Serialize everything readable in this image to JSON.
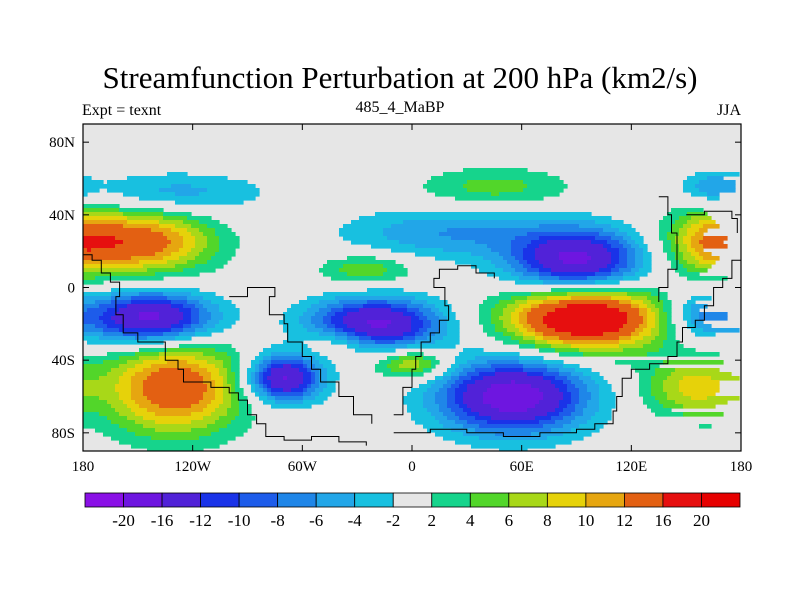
{
  "title": "Streamfunction Perturbation at 200 hPa (km2/s)",
  "subtitle_left": "Expt = texnt",
  "subtitle_center": "485_4_MaBP",
  "subtitle_right": "JJA",
  "chart_data": {
    "type": "heatmap",
    "title": "Streamfunction Perturbation at 200 hPa (km2/s)",
    "x_range": [
      -180,
      180
    ],
    "y_range": [
      -90,
      90
    ],
    "x_ticks": [
      {
        "value": -180,
        "label": "180"
      },
      {
        "value": -120,
        "label": "120W"
      },
      {
        "value": -60,
        "label": "60W"
      },
      {
        "value": 0,
        "label": "0"
      },
      {
        "value": 60,
        "label": "60E"
      },
      {
        "value": 120,
        "label": "120E"
      },
      {
        "value": 180,
        "label": "180"
      }
    ],
    "y_ticks": [
      {
        "value": 80,
        "label": "80N"
      },
      {
        "value": 40,
        "label": "40N"
      },
      {
        "value": 0,
        "label": "0"
      },
      {
        "value": -40,
        "label": "40S"
      },
      {
        "value": -80,
        "label": "80S"
      }
    ],
    "colorbar": {
      "levels": [
        "-20",
        "-16",
        "-12",
        "-10",
        "-8",
        "-6",
        "-4",
        "-2",
        "2",
        "4",
        "6",
        "8",
        "10",
        "12",
        "16",
        "20"
      ],
      "colors": [
        "#8a10e6",
        "#6e16e0",
        "#5122d8",
        "#1a33e8",
        "#1d5cea",
        "#1f86e8",
        "#22a6e8",
        "#18c0e0",
        "#e6e6e6",
        "#16d48c",
        "#52d62a",
        "#a8d818",
        "#e6d20a",
        "#e6a610",
        "#e36012",
        "#e60f0f"
      ]
    },
    "anomalies": [
      {
        "lon": -145,
        "lat": 25,
        "amp": 13,
        "slon": 26,
        "slat": 12
      },
      {
        "lon": -130,
        "lat": -55,
        "amp": 15,
        "slon": 26,
        "slat": 18
      },
      {
        "lon": -143,
        "lat": -17,
        "amp": -18,
        "slon": 24,
        "slat": 10
      },
      {
        "lon": -70,
        "lat": -50,
        "amp": -17,
        "slon": 14,
        "slat": 9
      },
      {
        "lon": -20,
        "lat": -20,
        "amp": -17,
        "slon": 25,
        "slat": 10
      },
      {
        "lon": -40,
        "lat": -30,
        "amp": 5,
        "slon": 14,
        "slat": 6
      },
      {
        "lon": -25,
        "lat": 10,
        "amp": 6,
        "slon": 18,
        "slat": 6
      },
      {
        "lon": 0,
        "lat": -42,
        "amp": 9,
        "slon": 14,
        "slat": 6
      },
      {
        "lon": 55,
        "lat": -60,
        "amp": -19,
        "slon": 28,
        "slat": 14
      },
      {
        "lon": 95,
        "lat": -17,
        "amp": 22,
        "slon": 30,
        "slat": 12
      },
      {
        "lon": 90,
        "lat": 15,
        "amp": -17,
        "slon": 25,
        "slat": 12
      },
      {
        "lon": 20,
        "lat": 30,
        "amp": -6,
        "slon": 40,
        "slat": 10
      },
      {
        "lon": 45,
        "lat": 55,
        "amp": 5,
        "slon": 30,
        "slat": 8
      },
      {
        "lon": -130,
        "lat": 52,
        "amp": -5,
        "slon": 35,
        "slat": 8
      },
      {
        "lon": 170,
        "lat": 25,
        "amp": 13,
        "slon": 22,
        "slat": 13
      },
      {
        "lon": 165,
        "lat": 55,
        "amp": -6,
        "slon": 12,
        "slat": 6
      },
      {
        "lon": 160,
        "lat": -15,
        "amp": -8,
        "slon": 16,
        "slat": 10
      },
      {
        "lon": 155,
        "lat": -55,
        "amp": 9,
        "slon": 20,
        "slat": 12
      }
    ],
    "coastlines": [
      [
        [
          -180,
          18
        ],
        [
          -175,
          15
        ],
        [
          -170,
          8
        ],
        [
          -165,
          3
        ],
        [
          -160,
          -5
        ],
        [
          -162,
          -15
        ],
        [
          -158,
          -25
        ],
        [
          -150,
          -30
        ],
        [
          -140,
          -30
        ],
        [
          -135,
          -40
        ],
        [
          -128,
          -45
        ],
        [
          -125,
          -52
        ],
        [
          -110,
          -55
        ],
        [
          -100,
          -58
        ],
        [
          -95,
          -62
        ],
        [
          -90,
          -70
        ],
        [
          -85,
          -75
        ],
        [
          -80,
          -82
        ],
        [
          -70,
          -84
        ],
        [
          -55,
          -82
        ],
        [
          -40,
          -85
        ],
        [
          -25,
          -87
        ]
      ],
      [
        [
          -100,
          -5
        ],
        [
          -90,
          0
        ],
        [
          -80,
          0
        ],
        [
          -75,
          -5
        ],
        [
          -78,
          -15
        ],
        [
          -70,
          -20
        ],
        [
          -68,
          -30
        ],
        [
          -60,
          -38
        ],
        [
          -55,
          -45
        ],
        [
          -50,
          -52
        ],
        [
          -40,
          -60
        ],
        [
          -32,
          -70
        ],
        [
          -22,
          -75
        ]
      ],
      [
        [
          -10,
          -70
        ],
        [
          -5,
          -55
        ],
        [
          0,
          -45
        ],
        [
          2,
          -38
        ],
        [
          5,
          -30
        ],
        [
          10,
          -25
        ],
        [
          15,
          -18
        ],
        [
          20,
          -10
        ],
        [
          18,
          0
        ],
        [
          12,
          5
        ],
        [
          15,
          10
        ],
        [
          25,
          12
        ],
        [
          35,
          8
        ],
        [
          45,
          5
        ]
      ],
      [
        [
          -10,
          -80
        ],
        [
          10,
          -78
        ],
        [
          30,
          -80
        ],
        [
          50,
          -82
        ],
        [
          70,
          -80
        ],
        [
          90,
          -78
        ],
        [
          100,
          -75
        ],
        [
          110,
          -68
        ],
        [
          112,
          -60
        ],
        [
          115,
          -50
        ],
        [
          120,
          -45
        ],
        [
          130,
          -42
        ],
        [
          140,
          -38
        ],
        [
          145,
          -30
        ],
        [
          148,
          -22
        ],
        [
          155,
          -18
        ],
        [
          160,
          -10
        ],
        [
          165,
          0
        ],
        [
          170,
          5
        ],
        [
          175,
          15
        ],
        [
          180,
          20
        ]
      ],
      [
        [
          135,
          50
        ],
        [
          140,
          40
        ],
        [
          142,
          30
        ],
        [
          145,
          20
        ],
        [
          145,
          10
        ],
        [
          140,
          0
        ],
        [
          135,
          -8
        ]
      ],
      [
        [
          150,
          40
        ],
        [
          160,
          42
        ],
        [
          170,
          42
        ],
        [
          175,
          38
        ],
        [
          178,
          30
        ]
      ]
    ]
  }
}
